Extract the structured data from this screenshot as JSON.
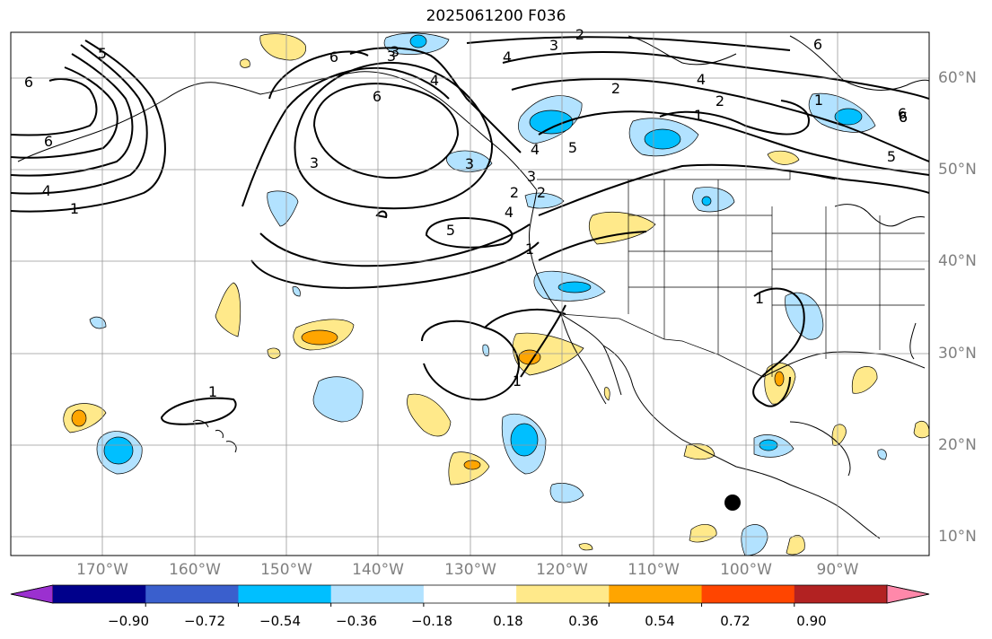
{
  "title": "2025061200 F036",
  "lat_labels": [
    "60°N",
    "50°N",
    "40°N",
    "30°N",
    "20°N",
    "10°N"
  ],
  "lon_labels": [
    "170°W",
    "160°W",
    "150°W",
    "140°W",
    "130°W",
    "120°W",
    "110°W",
    "100°W",
    "90°W"
  ],
  "colorbar": {
    "tick_labels": [
      "−0.90",
      "−0.72",
      "−0.54",
      "−0.36",
      "−0.18",
      "0.18",
      "0.36",
      "0.54",
      "0.72",
      "0.90"
    ],
    "colors": [
      "#9b30d0",
      "#00008b",
      "#3a5fcd",
      "#00bfff",
      "#b2e2ff",
      "#ffffff",
      "#ffe98a",
      "#ffa500",
      "#ff4500",
      "#b22222",
      "#ff88aa"
    ]
  },
  "contour_labels": [
    "6",
    "6",
    "6",
    "6",
    "5",
    "4",
    "1",
    "3",
    "3",
    "3",
    "4",
    "6",
    "6",
    "4",
    "2",
    "3",
    "2",
    "4",
    "1",
    "5",
    "2",
    "2",
    "3",
    "3",
    "4",
    "5",
    "1",
    "1",
    "1",
    "1",
    "5",
    "6",
    "6",
    "1",
    "4",
    "2"
  ],
  "colors": {
    "positive_light": "#ffe98a",
    "positive_mid": "#ffa500",
    "negative_light": "#b2e2ff",
    "negative_mid": "#00bfff",
    "grid": "#999999",
    "contour": "#000000"
  }
}
